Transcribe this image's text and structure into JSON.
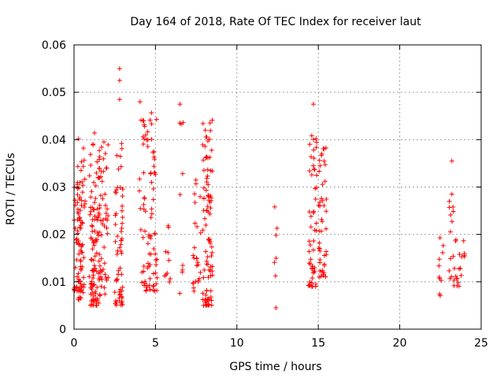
{
  "chart_data": {
    "type": "scatter",
    "title": "Day 164 of 2018, Rate Of TEC Index for receiver laut",
    "xlabel": "GPS time / hours",
    "ylabel": "ROTI / TECUs",
    "xlim": [
      0,
      25
    ],
    "ylim": [
      0,
      0.06
    ],
    "xticks": [
      0,
      5,
      10,
      15,
      20,
      25
    ],
    "yticks": [
      0,
      0.01,
      0.02,
      0.03,
      0.04,
      0.05,
      0.06
    ],
    "xtick_labels": [
      "0",
      "5",
      "10",
      "15",
      "20",
      "25"
    ],
    "ytick_labels": [
      "0",
      "0.01",
      "0.02",
      "0.03",
      "0.04",
      "0.05",
      "0.06"
    ],
    "grid": true,
    "marker": "+",
    "color": "#ff0000",
    "clusters": [
      {
        "x": [
          0.0,
          0.5
        ],
        "y": [
          0.008,
          0.031
        ],
        "n": 60,
        "seed": 11
      },
      {
        "x": [
          0.2,
          0.7
        ],
        "y": [
          0.006,
          0.041
        ],
        "n": 40,
        "seed": 12
      },
      {
        "x": [
          0.9,
          1.3
        ],
        "y": [
          0.009,
          0.034
        ],
        "n": 20,
        "seed": 13
      },
      {
        "x": [
          1.0,
          1.6
        ],
        "y": [
          0.005,
          0.044
        ],
        "n": 80,
        "seed": 14
      },
      {
        "x": [
          1.5,
          2.1
        ],
        "y": [
          0.007,
          0.043
        ],
        "n": 55,
        "seed": 15
      },
      {
        "x": [
          2.5,
          3.0
        ],
        "y": [
          0.005,
          0.04
        ],
        "n": 60,
        "seed": 16
      },
      {
        "x": [
          4.0,
          4.4
        ],
        "y": [
          0.009,
          0.049
        ],
        "n": 14,
        "seed": 17
      },
      {
        "x": [
          4.2,
          5.1
        ],
        "y": [
          0.008,
          0.046
        ],
        "n": 75,
        "seed": 18
      },
      {
        "x": [
          5.5,
          6.0
        ],
        "y": [
          0.009,
          0.023
        ],
        "n": 10,
        "seed": 19
      },
      {
        "x": [
          6.4,
          6.7
        ],
        "y": [
          0.007,
          0.047
        ],
        "n": 8,
        "seed": 20
      },
      {
        "x": [
          7.3,
          7.8
        ],
        "y": [
          0.008,
          0.033
        ],
        "n": 25,
        "seed": 21
      },
      {
        "x": [
          7.9,
          8.5
        ],
        "y": [
          0.005,
          0.045
        ],
        "n": 95,
        "seed": 22
      },
      {
        "x": [
          12.3,
          12.5
        ],
        "y": [
          0.011,
          0.026
        ],
        "n": 6,
        "seed": 23
      },
      {
        "x": [
          14.4,
          14.9
        ],
        "y": [
          0.009,
          0.041
        ],
        "n": 55,
        "seed": 24
      },
      {
        "x": [
          15.0,
          15.5
        ],
        "y": [
          0.011,
          0.039
        ],
        "n": 45,
        "seed": 25
      },
      {
        "x": [
          22.4,
          22.7
        ],
        "y": [
          0.007,
          0.02
        ],
        "n": 10,
        "seed": 26
      },
      {
        "x": [
          23.0,
          23.5
        ],
        "y": [
          0.009,
          0.028
        ],
        "n": 18,
        "seed": 27
      },
      {
        "x": [
          23.5,
          24.0
        ],
        "y": [
          0.009,
          0.02
        ],
        "n": 14,
        "seed": 28
      }
    ],
    "points": [
      [
        2.8,
        0.055
      ],
      [
        2.8,
        0.0525
      ],
      [
        2.8,
        0.0485
      ],
      [
        6.5,
        0.0475
      ],
      [
        6.5,
        0.0435
      ],
      [
        12.4,
        0.0045
      ],
      [
        14.7,
        0.0475
      ],
      [
        23.2,
        0.0355
      ],
      [
        23.2,
        0.0285
      ],
      [
        2.9,
        0.0055
      ],
      [
        1.1,
        0.0052
      ]
    ]
  }
}
